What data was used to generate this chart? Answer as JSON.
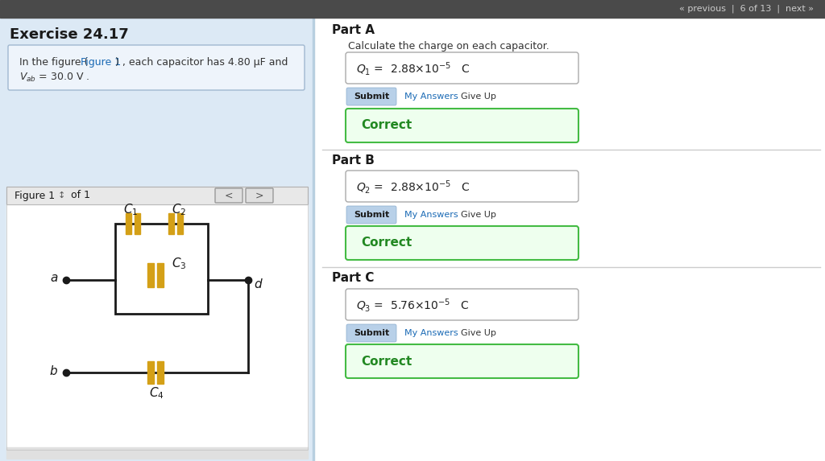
{
  "bg_top_bar": "#4a4a4a",
  "top_bar_text": "« previous  |  6 of 13  |  next »",
  "left_panel_bg": "#dce9f5",
  "exercise_title": "Exercise 24.17",
  "figure_label": "Figure 1",
  "figure_of": "of 1",
  "cap_color": "#d4a017",
  "line_color": "#1a1a1a",
  "part_a_label": "Part A",
  "part_a_desc": "Calculate the charge on each capacitor.",
  "part_b_label": "Part B",
  "part_c_label": "Part C",
  "correct_text": "Correct",
  "submit_text": "Submit",
  "my_answers_text": "My Answers",
  "give_up_text": "Give Up"
}
